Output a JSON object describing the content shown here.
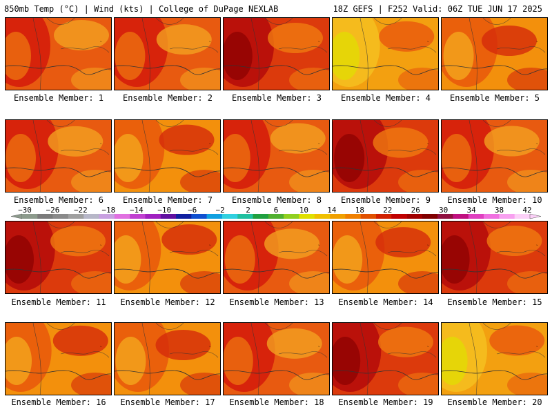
{
  "header": {
    "left": "850mb Temp (°C) | Wind (kts) | College of DuPage NEXLAB",
    "right": "18Z GEFS | F252 Valid: 06Z TUE JUN 17 2025"
  },
  "label_prefix": "Ensemble Member: ",
  "members": [
    {
      "label": "Ensemble Member: 1",
      "style": "red"
    },
    {
      "label": "Ensemble Member: 2",
      "style": "red"
    },
    {
      "label": "Ensemble Member: 3",
      "style": "darkred"
    },
    {
      "label": "Ensemble Member: 4",
      "style": "yellow"
    },
    {
      "label": "Ensemble Member: 5",
      "style": "orange"
    },
    {
      "label": "Ensemble Member: 6",
      "style": "red"
    },
    {
      "label": "Ensemble Member: 7",
      "style": "orange"
    },
    {
      "label": "Ensemble Member: 8",
      "style": "red"
    },
    {
      "label": "Ensemble Member: 9",
      "style": "darkred"
    },
    {
      "label": "Ensemble Member: 10",
      "style": "red"
    },
    {
      "label": "Ensemble Member: 11",
      "style": "darkred"
    },
    {
      "label": "Ensemble Member: 12",
      "style": "orange"
    },
    {
      "label": "Ensemble Member: 13",
      "style": "red"
    },
    {
      "label": "Ensemble Member: 14",
      "style": "orange"
    },
    {
      "label": "Ensemble Member: 15",
      "style": "darkred"
    },
    {
      "label": "Ensemble Member: 16",
      "style": "orange"
    },
    {
      "label": "Ensemble Member: 17",
      "style": "orange"
    },
    {
      "label": "Ensemble Member: 18",
      "style": "red"
    },
    {
      "label": "Ensemble Member: 19",
      "style": "darkred"
    },
    {
      "label": "Ensemble Member: 20",
      "style": "yellow"
    }
  ],
  "colorbar": {
    "ticks": [
      "-30",
      "-26",
      "-22",
      "-18",
      "-14",
      "-10",
      "-6",
      "-2",
      "2",
      "6",
      "10",
      "14",
      "18",
      "22",
      "26",
      "30",
      "34",
      "38",
      "42"
    ],
    "colors": [
      "#8c9a8c",
      "#7b7b7b",
      "#8a8a8a",
      "#a0a0a0",
      "#b7b7c8",
      "#c8a0e0",
      "#e070e0",
      "#c040d0",
      "#a020c0",
      "#6010a0",
      "#1020a0",
      "#1050d0",
      "#10a0e0",
      "#30d0e0",
      "#20c0a0",
      "#20a040",
      "#50b030",
      "#90d020",
      "#e0e000",
      "#f0c000",
      "#f0a000",
      "#f08000",
      "#e05000",
      "#d02000",
      "#c00000",
      "#a00000",
      "#800000",
      "#901040",
      "#c01080",
      "#e040c0",
      "#f070e0",
      "#f8a0f0",
      "#fcd0f8"
    ]
  }
}
